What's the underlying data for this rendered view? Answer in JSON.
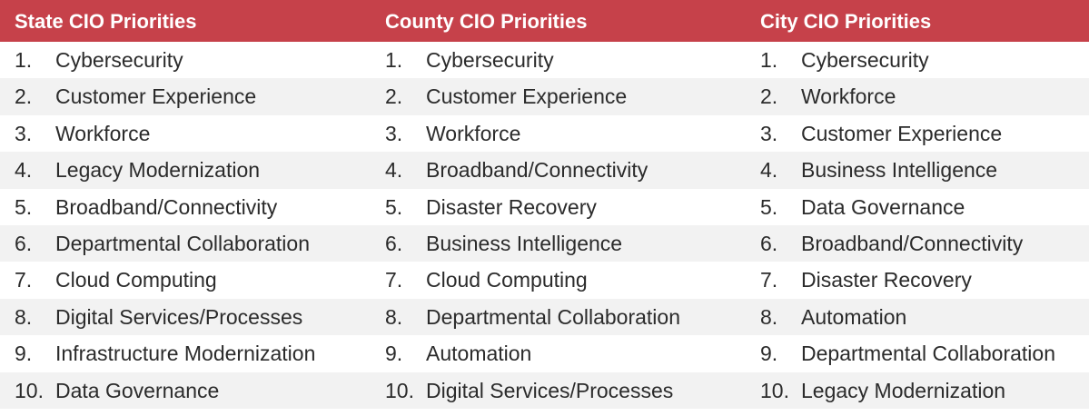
{
  "columns": [
    {
      "title": "State CIO Priorities",
      "items": [
        {
          "num": "1.",
          "label": "Cybersecurity"
        },
        {
          "num": "2.",
          "label": "Customer Experience"
        },
        {
          "num": "3.",
          "label": "Workforce"
        },
        {
          "num": "4.",
          "label": "Legacy Modernization"
        },
        {
          "num": "5.",
          "label": "Broadband/Connectivity"
        },
        {
          "num": "6.",
          "label": "Departmental Collaboration"
        },
        {
          "num": "7.",
          "label": "Cloud Computing"
        },
        {
          "num": "8.",
          "label": "Digital Services/Processes"
        },
        {
          "num": "9.",
          "label": "Infrastructure Modernization"
        },
        {
          "num": "10.",
          "label": "Data Governance"
        }
      ]
    },
    {
      "title": "County CIO Priorities",
      "items": [
        {
          "num": "1.",
          "label": "Cybersecurity"
        },
        {
          "num": "2.",
          "label": "Customer Experience"
        },
        {
          "num": "3.",
          "label": "Workforce"
        },
        {
          "num": "4.",
          "label": "Broadband/Connectivity"
        },
        {
          "num": "5.",
          "label": "Disaster Recovery"
        },
        {
          "num": "6.",
          "label": "Business Intelligence"
        },
        {
          "num": "7.",
          "label": "Cloud Computing"
        },
        {
          "num": "8.",
          "label": "Departmental Collaboration"
        },
        {
          "num": "9.",
          "label": "Automation"
        },
        {
          "num": "10.",
          "label": "Digital Services/Processes"
        }
      ]
    },
    {
      "title": "City CIO Priorities",
      "items": [
        {
          "num": "1.",
          "label": "Cybersecurity"
        },
        {
          "num": "2.",
          "label": "Workforce"
        },
        {
          "num": "3.",
          "label": "Customer Experience"
        },
        {
          "num": "4.",
          "label": "Business Intelligence"
        },
        {
          "num": "5.",
          "label": "Data Governance"
        },
        {
          "num": "6.",
          "label": "Broadband/Connectivity"
        },
        {
          "num": "7.",
          "label": "Disaster Recovery"
        },
        {
          "num": "8.",
          "label": "Automation"
        },
        {
          "num": "9.",
          "label": "Departmental Collaboration"
        },
        {
          "num": "10.",
          "label": "Legacy Modernization"
        }
      ]
    }
  ],
  "colors": {
    "header_background": "#c6414a",
    "header_text": "#ffffff",
    "shaded_row": "#f2f2f2",
    "body_text": "#2b2b2b"
  }
}
